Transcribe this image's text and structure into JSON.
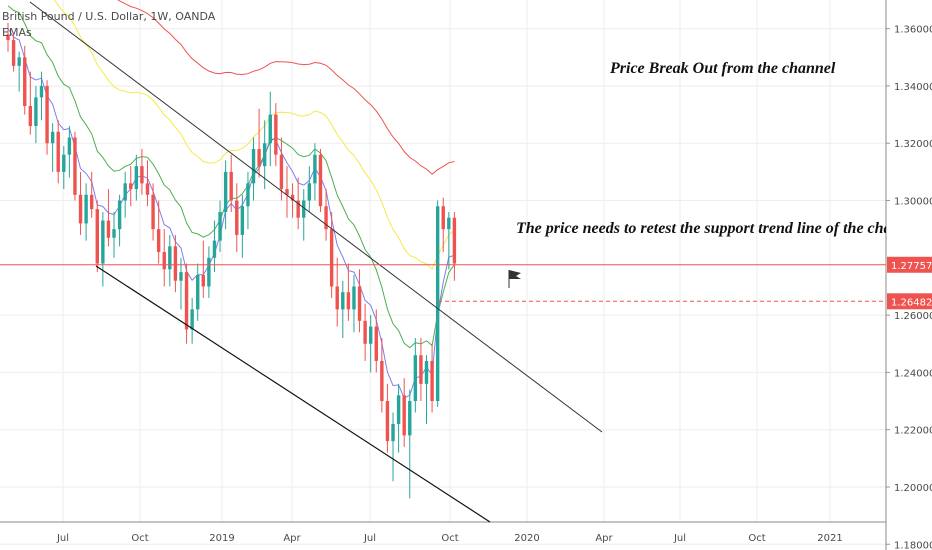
{
  "header": {
    "symbol_line": "British Pound / U.S. Dollar, 1W, OANDA",
    "indicator": "EMAs"
  },
  "annotations": {
    "breakout": "Price Break Out from the channel",
    "retest": "The price needs to retest the support trend line of the channel"
  },
  "colors": {
    "up": "#26a69a",
    "down": "#ef5350",
    "ema_fast": "#7e7ef0",
    "ema_mid": "#4caf50",
    "ema_slow": "#f5e94a",
    "ema_long": "#ef5350",
    "trend": "#333333",
    "grid": "#eeeeee",
    "price_tag": "#ef5350"
  },
  "chart_data": {
    "type": "candlestick",
    "y_axis": {
      "ticks": [
        "1.36000",
        "1.34000",
        "1.32000",
        "1.30000",
        "1.26000",
        "1.24000",
        "1.22000",
        "1.20000",
        "1.18000"
      ],
      "ylim": [
        1.178,
        1.37
      ]
    },
    "x_axis": {
      "ticks": [
        "Jul",
        "Oct",
        "2019",
        "Apr",
        "Jul",
        "Oct",
        "2020",
        "Apr",
        "Jul",
        "Oct",
        "2021"
      ]
    },
    "price_labels": [
      {
        "label": "1.27757",
        "value": 1.27757,
        "style": "solid"
      },
      {
        "label": "1.26482",
        "value": 1.26482,
        "style": "dashed"
      }
    ],
    "candles": [
      [
        1.358,
        1.362,
        1.352,
        1.356
      ],
      [
        1.356,
        1.358,
        1.345,
        1.347
      ],
      [
        1.347,
        1.352,
        1.338,
        1.35
      ],
      [
        1.35,
        1.354,
        1.33,
        1.333
      ],
      [
        1.333,
        1.345,
        1.323,
        1.326
      ],
      [
        1.326,
        1.34,
        1.32,
        1.336
      ],
      [
        1.336,
        1.345,
        1.328,
        1.34
      ],
      [
        1.34,
        1.342,
        1.316,
        1.32
      ],
      [
        1.32,
        1.327,
        1.31,
        1.324
      ],
      [
        1.324,
        1.328,
        1.306,
        1.31
      ],
      [
        1.31,
        1.319,
        1.304,
        1.316
      ],
      [
        1.316,
        1.326,
        1.308,
        1.322
      ],
      [
        1.322,
        1.324,
        1.3,
        1.302
      ],
      [
        1.302,
        1.31,
        1.288,
        1.292
      ],
      [
        1.292,
        1.306,
        1.286,
        1.302
      ],
      [
        1.302,
        1.31,
        1.294,
        1.297
      ],
      [
        1.297,
        1.3,
        1.275,
        1.278
      ],
      [
        1.278,
        1.296,
        1.27,
        1.293
      ],
      [
        1.293,
        1.304,
        1.284,
        1.287
      ],
      [
        1.287,
        1.296,
        1.28,
        1.29
      ],
      [
        1.29,
        1.302,
        1.284,
        1.3
      ],
      [
        1.3,
        1.31,
        1.294,
        1.306
      ],
      [
        1.306,
        1.312,
        1.298,
        1.304
      ],
      [
        1.304,
        1.316,
        1.3,
        1.312
      ],
      [
        1.312,
        1.318,
        1.302,
        1.306
      ],
      [
        1.306,
        1.314,
        1.298,
        1.302
      ],
      [
        1.302,
        1.306,
        1.286,
        1.29
      ],
      [
        1.29,
        1.3,
        1.278,
        1.282
      ],
      [
        1.282,
        1.29,
        1.27,
        1.276
      ],
      [
        1.276,
        1.288,
        1.27,
        1.284
      ],
      [
        1.284,
        1.288,
        1.268,
        1.272
      ],
      [
        1.272,
        1.28,
        1.262,
        1.275
      ],
      [
        1.275,
        1.278,
        1.25,
        1.255
      ],
      [
        1.255,
        1.266,
        1.25,
        1.262
      ],
      [
        1.262,
        1.278,
        1.258,
        1.274
      ],
      [
        1.274,
        1.286,
        1.266,
        1.27
      ],
      [
        1.27,
        1.284,
        1.266,
        1.28
      ],
      [
        1.28,
        1.293,
        1.275,
        1.286
      ],
      [
        1.286,
        1.3,
        1.282,
        1.296
      ],
      [
        1.296,
        1.314,
        1.29,
        1.31
      ],
      [
        1.31,
        1.316,
        1.296,
        1.3
      ],
      [
        1.3,
        1.306,
        1.282,
        1.288
      ],
      [
        1.288,
        1.302,
        1.28,
        1.298
      ],
      [
        1.298,
        1.31,
        1.29,
        1.306
      ],
      [
        1.306,
        1.322,
        1.3,
        1.318
      ],
      [
        1.318,
        1.332,
        1.308,
        1.312
      ],
      [
        1.312,
        1.328,
        1.304,
        1.32
      ],
      [
        1.32,
        1.338,
        1.312,
        1.33
      ],
      [
        1.33,
        1.334,
        1.312,
        1.316
      ],
      [
        1.316,
        1.322,
        1.3,
        1.304
      ],
      [
        1.304,
        1.312,
        1.294,
        1.302
      ],
      [
        1.302,
        1.306,
        1.294,
        1.3
      ],
      [
        1.3,
        1.308,
        1.29,
        1.294
      ],
      [
        1.294,
        1.304,
        1.286,
        1.3
      ],
      [
        1.3,
        1.312,
        1.296,
        1.306
      ],
      [
        1.306,
        1.32,
        1.3,
        1.316
      ],
      [
        1.316,
        1.318,
        1.296,
        1.298
      ],
      [
        1.298,
        1.304,
        1.286,
        1.29
      ],
      [
        1.29,
        1.296,
        1.266,
        1.27
      ],
      [
        1.27,
        1.28,
        1.256,
        1.262
      ],
      [
        1.262,
        1.272,
        1.252,
        1.268
      ],
      [
        1.268,
        1.278,
        1.258,
        1.262
      ],
      [
        1.262,
        1.274,
        1.254,
        1.27
      ],
      [
        1.27,
        1.276,
        1.254,
        1.258
      ],
      [
        1.258,
        1.264,
        1.244,
        1.25
      ],
      [
        1.25,
        1.26,
        1.24,
        1.256
      ],
      [
        1.256,
        1.262,
        1.24,
        1.244
      ],
      [
        1.244,
        1.252,
        1.226,
        1.23
      ],
      [
        1.23,
        1.236,
        1.212,
        1.216
      ],
      [
        1.216,
        1.226,
        1.202,
        1.222
      ],
      [
        1.222,
        1.236,
        1.212,
        1.232
      ],
      [
        1.232,
        1.238,
        1.214,
        1.218
      ],
      [
        1.218,
        1.234,
        1.196,
        1.23
      ],
      [
        1.23,
        1.252,
        1.226,
        1.246
      ],
      [
        1.246,
        1.252,
        1.23,
        1.236
      ],
      [
        1.236,
        1.246,
        1.222,
        1.244
      ],
      [
        1.244,
        1.25,
        1.226,
        1.23
      ],
      [
        1.23,
        1.3,
        1.228,
        1.298
      ],
      [
        1.298,
        1.301,
        1.282,
        1.29
      ],
      [
        1.29,
        1.296,
        1.276,
        1.294
      ],
      [
        1.294,
        1.296,
        1.272,
        1.278
      ]
    ]
  }
}
